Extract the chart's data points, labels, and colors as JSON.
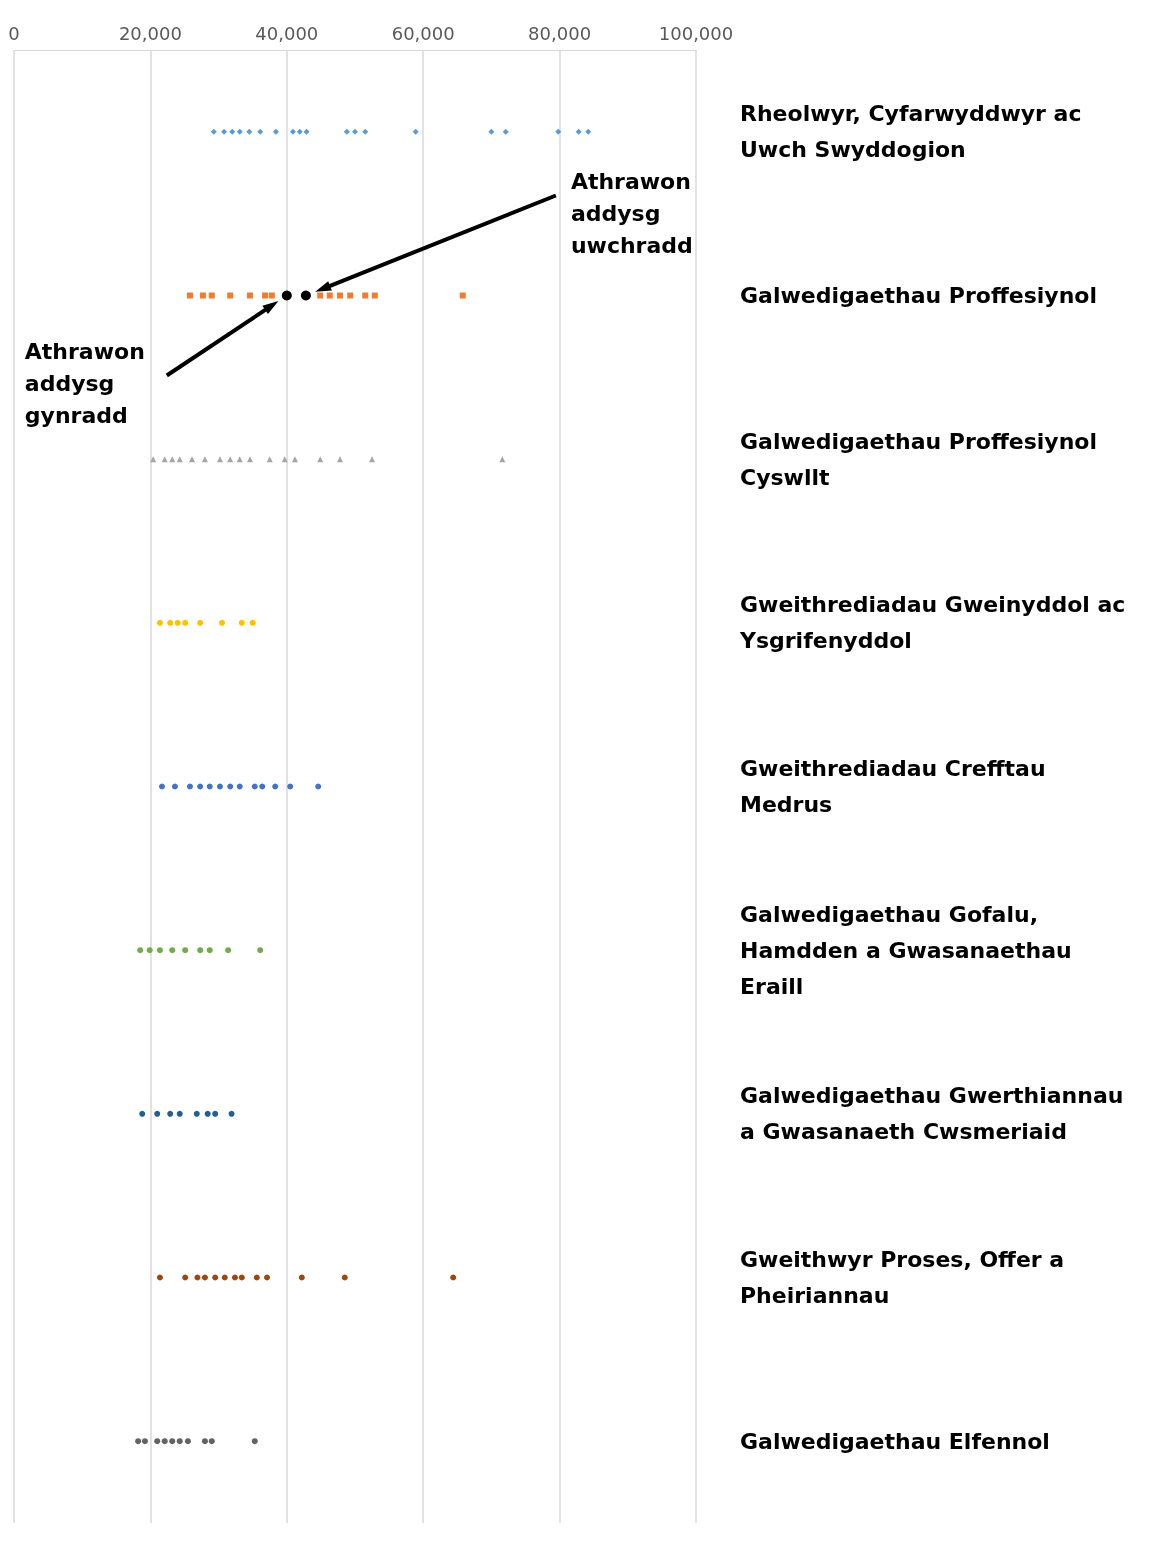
{
  "chart_data": {
    "type": "scatter",
    "orientation": "horizontal",
    "categories": [
      "Rheolwyr, Cyfarwyddwyr ac Uwch Swyddogion",
      "Galwedigaethau Proffesiynol",
      "Galwedigaethau Proffesiynol Cyswllt",
      "Gweithrediadau Gweinyddol ac Ysgrifenyddol",
      "Gweithrediadau Crefftau Medrus",
      "Galwedigaethau Gofalu, Hamdden a Gwasanaethau Eraill",
      "Galwedigaethau Gwerthiannau a Gwasanaeth Cwsmeriaid",
      "Gweithwyr Proses, Offer a Pheiriannau",
      "Galwedigaethau Elfennol"
    ],
    "xlim": [
      0,
      100000
    ],
    "xticks": [
      0,
      {
        "value": 20000,
        "label": "20,000"
      },
      {
        "value": 40000,
        "label": "40,000"
      },
      {
        "value": 60000,
        "label": "60,000"
      },
      {
        "value": 80000,
        "label": "80,000"
      },
      {
        "value": 100000,
        "label": "100,000"
      }
    ],
    "grid": "x",
    "series": [
      {
        "color": "#5b9bd5",
        "marker": "diamond",
        "x": [
          "Rheolwyr, Cyfarwyddwyr ac Uwch Swyddogion",
          "Rheolwyr, Cyfarwyddwyr ac Uwch Swyddogion",
          "Rheolwyr, Cyfarwyddwyr ac Uwch Swyddogion",
          "Rheolwyr, Cyfarwyddwyr ac Uwch Swyddogion",
          "Rheolwyr, Cyfarwyddwyr ac Uwch Swyddogion",
          "Rheolwyr, Cyfarwyddwyr ac Uwch Swyddogion",
          "Rheolwyr, Cyfarwyddwyr ac Uwch Swyddogion",
          "Rheolwyr, Cyfarwyddwyr ac Uwch Swyddogion",
          "Rheolwyr, Cyfarwyddwyr ac Uwch Swyddogion",
          "Rheolwyr, Cyfarwyddwyr ac Uwch Swyddogion",
          "Rheolwyr, Cyfarwyddwyr ac Uwch Swyddogion",
          "Rheolwyr, Cyfarwyddwyr ac Uwch Swyddogion",
          "Rheolwyr, Cyfarwyddwyr ac Uwch Swyddogion",
          "Rheolwyr, Cyfarwyddwyr ac Uwch Swyddogion",
          "Rheolwyr, Cyfarwyddwyr ac Uwch Swyddogion",
          "Rheolwyr, Cyfarwyddwyr ac Uwch Swyddogion",
          "Rheolwyr, Cyfarwyddwyr ac Uwch Swyddogion",
          "Rheolwyr, Cyfarwyddwyr ac Uwch Swyddogion",
          "Rheolwyr, Cyfarwyddwyr ac Uwch Swyddogion"
        ],
        "values": [
          29300,
          30800,
          32000,
          33100,
          34500,
          36100,
          38400,
          40900,
          41900,
          42900,
          48800,
          50000,
          51500,
          58900,
          70000,
          72100,
          79800,
          82800,
          84200
        ]
      },
      {
        "color": "#ed7d31",
        "marker": "square",
        "x": [
          "Galwedigaethau Proffesiynol",
          "Galwedigaethau Proffesiynol",
          "Galwedigaethau Proffesiynol",
          "Galwedigaethau Proffesiynol",
          "Galwedigaethau Proffesiynol",
          "Galwedigaethau Proffesiynol",
          "Galwedigaethau Proffesiynol",
          "Galwedigaethau Proffesiynol",
          "Galwedigaethau Proffesiynol",
          "Galwedigaethau Proffesiynol",
          "Galwedigaethau Proffesiynol",
          "Galwedigaethau Proffesiynol",
          "Galwedigaethau Proffesiynol",
          "Galwedigaethau Proffesiynol"
        ],
        "values": [
          25800,
          27700,
          29000,
          31700,
          34600,
          36800,
          37800,
          44900,
          46300,
          47800,
          49300,
          51500,
          52900,
          65800
        ]
      },
      {
        "color": "#a5a5a5",
        "marker": "triangle",
        "x": [
          "Galwedigaethau Proffesiynol Cyswllt",
          "Galwedigaethau Proffesiynol Cyswllt",
          "Galwedigaethau Proffesiynol Cyswllt",
          "Galwedigaethau Proffesiynol Cyswllt",
          "Galwedigaethau Proffesiynol Cyswllt",
          "Galwedigaethau Proffesiynol Cyswllt",
          "Galwedigaethau Proffesiynol Cyswllt",
          "Galwedigaethau Proffesiynol Cyswllt",
          "Galwedigaethau Proffesiynol Cyswllt",
          "Galwedigaethau Proffesiynol Cyswllt",
          "Galwedigaethau Proffesiynol Cyswllt",
          "Galwedigaethau Proffesiynol Cyswllt",
          "Galwedigaethau Proffesiynol Cyswllt",
          "Galwedigaethau Proffesiynol Cyswllt",
          "Galwedigaethau Proffesiynol Cyswllt",
          "Galwedigaethau Proffesiynol Cyswllt",
          "Galwedigaethau Proffesiynol Cyswllt"
        ],
        "values": [
          20400,
          22100,
          23200,
          24300,
          26100,
          28000,
          30200,
          31700,
          33100,
          34600,
          37500,
          39700,
          41200,
          44900,
          47800,
          52500,
          71600
        ]
      },
      {
        "color": "#ffc000",
        "marker": "circle",
        "x": [
          "Gweithrediadau Gweinyddol ac Ysgrifenyddol",
          "Gweithrediadau Gweinyddol ac Ysgrifenyddol",
          "Gweithrediadau Gweinyddol ac Ysgrifenyddol",
          "Gweithrediadau Gweinyddol ac Ysgrifenyddol",
          "Gweithrediadau Gweinyddol ac Ysgrifenyddol",
          "Gweithrediadau Gweinyddol ac Ysgrifenyddol",
          "Gweithrediadau Gweinyddol ac Ysgrifenyddol",
          "Gweithrediadau Gweinyddol ac Ysgrifenyddol"
        ],
        "values": [
          21400,
          22900,
          24000,
          25100,
          27300,
          30500,
          33400,
          35000
        ]
      },
      {
        "color": "#4472c4",
        "marker": "circle",
        "x": [
          "Gweithrediadau Crefftau Medrus",
          "Gweithrediadau Crefftau Medrus",
          "Gweithrediadau Crefftau Medrus",
          "Gweithrediadau Crefftau Medrus",
          "Gweithrediadau Crefftau Medrus",
          "Gweithrediadau Crefftau Medrus",
          "Gweithrediadau Crefftau Medrus",
          "Gweithrediadau Crefftau Medrus",
          "Gweithrediadau Crefftau Medrus",
          "Gweithrediadau Crefftau Medrus",
          "Gweithrediadau Crefftau Medrus",
          "Gweithrediadau Crefftau Medrus",
          "Gweithrediadau Crefftau Medrus"
        ],
        "values": [
          21700,
          23600,
          25800,
          27300,
          28700,
          30200,
          31700,
          33100,
          35300,
          36400,
          38300,
          40500,
          44600
        ]
      },
      {
        "color": "#70ad47",
        "marker": "circle",
        "x": [
          "Galwedigaethau Gofalu, Hamdden a Gwasanaethau Eraill",
          "Galwedigaethau Gofalu, Hamdden a Gwasanaethau Eraill",
          "Galwedigaethau Gofalu, Hamdden a Gwasanaethau Eraill",
          "Galwedigaethau Gofalu, Hamdden a Gwasanaethau Eraill",
          "Galwedigaethau Gofalu, Hamdden a Gwasanaethau Eraill",
          "Galwedigaethau Gofalu, Hamdden a Gwasanaethau Eraill",
          "Galwedigaethau Gofalu, Hamdden a Gwasanaethau Eraill",
          "Galwedigaethau Gofalu, Hamdden a Gwasanaethau Eraill",
          "Galwedigaethau Gofalu, Hamdden a Gwasanaethau Eraill"
        ],
        "values": [
          18500,
          19900,
          21400,
          23200,
          25100,
          27300,
          28700,
          31400,
          36100
        ]
      },
      {
        "color": "#255e91",
        "marker": "circle",
        "x": [
          "Galwedigaethau Gwerthiannau a Gwasanaeth Cwsmeriaid",
          "Galwedigaethau Gwerthiannau a Gwasanaeth Cwsmeriaid",
          "Galwedigaethau Gwerthiannau a Gwasanaeth Cwsmeriaid",
          "Galwedigaethau Gwerthiannau a Gwasanaeth Cwsmeriaid",
          "Galwedigaethau Gwerthiannau a Gwasanaeth Cwsmeriaid",
          "Galwedigaethau Gwerthiannau a Gwasanaeth Cwsmeriaid",
          "Galwedigaethau Gwerthiannau a Gwasanaeth Cwsmeriaid",
          "Galwedigaethau Gwerthiannau a Gwasanaeth Cwsmeriaid"
        ],
        "values": [
          18800,
          21000,
          22900,
          24300,
          26800,
          28400,
          29500,
          31900
        ]
      },
      {
        "color": "#9e480e",
        "marker": "circle",
        "x": [
          "Gweithwyr Proses, Offer a Pheiriannau",
          "Gweithwyr Proses, Offer a Pheiriannau",
          "Gweithwyr Proses, Offer a Pheiriannau",
          "Gweithwyr Proses, Offer a Pheiriannau",
          "Gweithwyr Proses, Offer a Pheiriannau",
          "Gweithwyr Proses, Offer a Pheiriannau",
          "Gweithwyr Proses, Offer a Pheiriannau",
          "Gweithwyr Proses, Offer a Pheiriannau",
          "Gweithwyr Proses, Offer a Pheiriannau",
          "Gweithwyr Proses, Offer a Pheiriannau",
          "Gweithwyr Proses, Offer a Pheiriannau",
          "Gweithwyr Proses, Offer a Pheiriannau",
          "Gweithwyr Proses, Offer a Pheiriannau"
        ],
        "values": [
          21400,
          25100,
          26900,
          28000,
          29500,
          30900,
          32400,
          33400,
          35600,
          37100,
          42200,
          48500,
          64400
        ]
      },
      {
        "color": "#636363",
        "marker": "circle",
        "x": [
          "Galwedigaethau Elfennol",
          "Galwedigaethau Elfennol",
          "Galwedigaethau Elfennol",
          "Galwedigaethau Elfennol",
          "Galwedigaethau Elfennol",
          "Galwedigaethau Elfennol",
          "Galwedigaethau Elfennol",
          "Galwedigaethau Elfennol",
          "Galwedigaethau Elfennol",
          "Galwedigaethau Elfennol"
        ],
        "values": [
          18200,
          19200,
          21000,
          22100,
          23200,
          24300,
          25500,
          28000,
          29000,
          35300
        ]
      },
      {
        "color": "#000000",
        "marker": "circle",
        "x": [
          "Galwedigaethau Proffesiynol",
          "Galwedigaethau Proffesiynol"
        ],
        "values": [
          40000,
          42800
        ]
      }
    ],
    "annotations": [
      "Athrawon addysg gynradd",
      "Athrawon addysg uwchradd"
    ]
  }
}
